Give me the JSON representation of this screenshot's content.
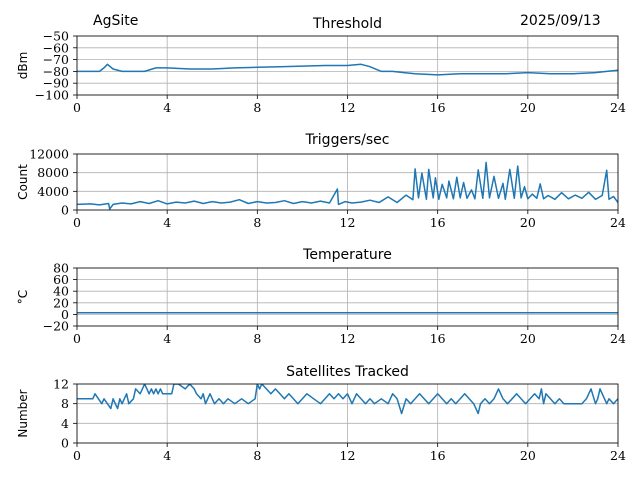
{
  "header": {
    "site": "AgSite",
    "date": "2025/09/13"
  },
  "colors": {
    "series": "#1f77b4",
    "grid": "#b0b0b0",
    "axis": "#000000"
  },
  "chart_data": [
    {
      "id": "threshold",
      "type": "line",
      "title": "Threshold",
      "xlabel": "",
      "ylabel": "dBm",
      "xlim": [
        0,
        24
      ],
      "ylim": [
        -100,
        -50
      ],
      "xticks": [
        0,
        4,
        8,
        12,
        16,
        20,
        24
      ],
      "yticks": [
        -100,
        -90,
        -80,
        -70,
        -60,
        -50
      ],
      "ytick_labels": [
        "−100",
        "−90",
        "−80",
        "−70",
        "−60",
        "−50"
      ],
      "grid": true,
      "series": [
        {
          "name": "Threshold",
          "x": [
            0,
            0.5,
            1.0,
            1.2,
            1.35,
            1.6,
            2.0,
            3.0,
            3.5,
            4.0,
            5.0,
            6.0,
            7.0,
            8.0,
            9.0,
            10.0,
            11.0,
            12.0,
            12.6,
            13.0,
            13.5,
            14.0,
            14.5,
            15.0,
            16.0,
            17.0,
            18.0,
            19.0,
            20.0,
            21.0,
            22.0,
            23.0,
            23.5,
            24.0
          ],
          "y": [
            -80,
            -80,
            -80,
            -77,
            -74,
            -78,
            -80,
            -80,
            -77,
            -77,
            -78,
            -78,
            -77,
            -76.5,
            -76,
            -75.5,
            -75,
            -75,
            -74,
            -76,
            -80,
            -80,
            -81,
            -82,
            -83,
            -82,
            -82,
            -82,
            -81,
            -82,
            -82,
            -81,
            -80,
            -79
          ]
        }
      ]
    },
    {
      "id": "triggers",
      "type": "line",
      "title": "Triggers/sec",
      "xlabel": "",
      "ylabel": "Count",
      "xlim": [
        0,
        24
      ],
      "ylim": [
        0,
        12000
      ],
      "xticks": [
        0,
        4,
        8,
        12,
        16,
        20,
        24
      ],
      "yticks": [
        0,
        4000,
        8000,
        12000
      ],
      "ytick_labels": [
        "0",
        "4000",
        "8000",
        "12000"
      ],
      "grid": true,
      "series": [
        {
          "name": "Triggers/sec",
          "x": [
            0,
            0.6,
            1.0,
            1.4,
            1.45,
            1.6,
            2.0,
            2.4,
            2.8,
            3.2,
            3.6,
            4.0,
            4.4,
            4.8,
            5.2,
            5.6,
            6.0,
            6.4,
            6.8,
            7.2,
            7.6,
            8.0,
            8.4,
            8.8,
            9.2,
            9.6,
            10.0,
            10.4,
            10.8,
            11.2,
            11.55,
            11.6,
            11.9,
            12.2,
            12.6,
            13.0,
            13.4,
            13.8,
            14.2,
            14.6,
            14.9,
            15.0,
            15.15,
            15.3,
            15.5,
            15.6,
            15.8,
            15.9,
            16.05,
            16.2,
            16.4,
            16.5,
            16.7,
            16.85,
            17.0,
            17.15,
            17.3,
            17.5,
            17.65,
            17.8,
            18.0,
            18.15,
            18.3,
            18.5,
            18.7,
            18.9,
            19.0,
            19.2,
            19.4,
            19.55,
            19.7,
            19.85,
            20.0,
            20.2,
            20.4,
            20.55,
            20.7,
            20.9,
            21.2,
            21.5,
            21.8,
            22.1,
            22.4,
            22.7,
            23.0,
            23.3,
            23.5,
            23.6,
            23.8,
            24.0
          ],
          "y": [
            1200,
            1300,
            1100,
            1400,
            200,
            1200,
            1500,
            1300,
            1800,
            1400,
            2000,
            1300,
            1700,
            1500,
            1900,
            1400,
            1800,
            1500,
            1700,
            2200,
            1400,
            1800,
            1500,
            1600,
            2000,
            1400,
            1800,
            1500,
            1900,
            1500,
            4500,
            1200,
            1800,
            1500,
            1700,
            2100,
            1600,
            2800,
            1600,
            3200,
            2200,
            8800,
            2600,
            7900,
            2300,
            8700,
            2600,
            6900,
            2300,
            5500,
            2600,
            6200,
            2400,
            7000,
            2600,
            5900,
            2500,
            4300,
            2400,
            8600,
            2500,
            10200,
            2600,
            7200,
            2500,
            5700,
            2300,
            8700,
            2500,
            9400,
            2600,
            5000,
            2400,
            3400,
            2500,
            5600,
            2400,
            3100,
            2300,
            3700,
            2400,
            3200,
            2500,
            3800,
            2300,
            3100,
            8500,
            2300,
            2900,
            1600
          ]
        }
      ]
    },
    {
      "id": "temperature",
      "type": "line",
      "title": "Temperature",
      "xlabel": "",
      "ylabel": "°C",
      "xlim": [
        0,
        24
      ],
      "ylim": [
        -20,
        80
      ],
      "xticks": [
        0,
        4,
        8,
        12,
        16,
        20,
        24
      ],
      "yticks": [
        -20,
        0,
        20,
        40,
        60,
        80
      ],
      "ytick_labels": [
        "−20",
        "0",
        "20",
        "40",
        "60",
        "80"
      ],
      "grid": true,
      "series": [
        {
          "name": "Temperature",
          "x": [
            0,
            24
          ],
          "y": [
            3,
            3
          ]
        }
      ]
    },
    {
      "id": "satellites",
      "type": "line",
      "title": "Satellites Tracked",
      "xlabel": "",
      "ylabel": "Number",
      "xlim": [
        0,
        24
      ],
      "ylim": [
        0,
        12
      ],
      "xticks": [
        0,
        4,
        8,
        12,
        16,
        20,
        24
      ],
      "yticks": [
        0,
        4,
        8,
        12
      ],
      "ytick_labels": [
        "0",
        "4",
        "8",
        "12"
      ],
      "grid": true,
      "series": [
        {
          "name": "Satellites Tracked",
          "x": [
            0,
            0.7,
            0.8,
            1.1,
            1.2,
            1.5,
            1.6,
            1.7,
            1.8,
            1.9,
            2.0,
            2.1,
            2.2,
            2.3,
            2.5,
            2.6,
            2.8,
            2.9,
            3.0,
            3.1,
            3.2,
            3.3,
            3.4,
            3.5,
            3.6,
            3.7,
            3.8,
            4.2,
            4.3,
            4.5,
            4.8,
            5.0,
            5.2,
            5.3,
            5.5,
            5.6,
            5.7,
            5.9,
            6.0,
            6.1,
            6.3,
            6.5,
            6.7,
            7.0,
            7.3,
            7.6,
            7.9,
            8.0,
            8.1,
            8.2,
            8.4,
            8.6,
            8.8,
            9.0,
            9.2,
            9.4,
            9.6,
            9.8,
            10.0,
            10.2,
            10.5,
            10.8,
            11.0,
            11.2,
            11.4,
            11.6,
            11.8,
            12.0,
            12.2,
            12.4,
            12.6,
            12.8,
            13.0,
            13.2,
            13.5,
            13.8,
            14.0,
            14.2,
            14.4,
            14.6,
            14.8,
            15.0,
            15.2,
            15.4,
            15.6,
            15.8,
            16.0,
            16.2,
            16.4,
            16.6,
            16.8,
            17.0,
            17.2,
            17.4,
            17.6,
            17.8,
            17.9,
            18.1,
            18.3,
            18.5,
            18.7,
            18.9,
            19.1,
            19.3,
            19.5,
            19.7,
            19.9,
            20.1,
            20.3,
            20.5,
            20.6,
            20.7,
            20.8,
            21.0,
            21.2,
            21.4,
            21.6,
            22.0,
            22.4,
            22.6,
            22.8,
            23.0,
            23.1,
            23.2,
            23.4,
            23.5,
            23.6,
            23.8,
            24.0
          ],
          "y": [
            9,
            9,
            10,
            8,
            9,
            7,
            9,
            8,
            7,
            9,
            8,
            9,
            10,
            8,
            9,
            11,
            10,
            11,
            12,
            11,
            10,
            11,
            10,
            11,
            10,
            11,
            10,
            10,
            12,
            12,
            11,
            12,
            11,
            10,
            9,
            10,
            8,
            10,
            9,
            8,
            9,
            8,
            9,
            8,
            9,
            8,
            9,
            12,
            11,
            12,
            11,
            10,
            11,
            10,
            9,
            10,
            9,
            8,
            9,
            10,
            9,
            8,
            9,
            10,
            9,
            10,
            9,
            10,
            8,
            10,
            9,
            8,
            9,
            8,
            9,
            8,
            10,
            9,
            6,
            9,
            8,
            9,
            10,
            9,
            8,
            9,
            10,
            9,
            8,
            9,
            8,
            9,
            10,
            9,
            8,
            6,
            8,
            9,
            8,
            9,
            11,
            9,
            8,
            9,
            10,
            9,
            8,
            9,
            10,
            9,
            11,
            8,
            10,
            9,
            8,
            9,
            8,
            8,
            8,
            9,
            11,
            8,
            9,
            11,
            9,
            8,
            9,
            8,
            9
          ]
        }
      ]
    }
  ]
}
